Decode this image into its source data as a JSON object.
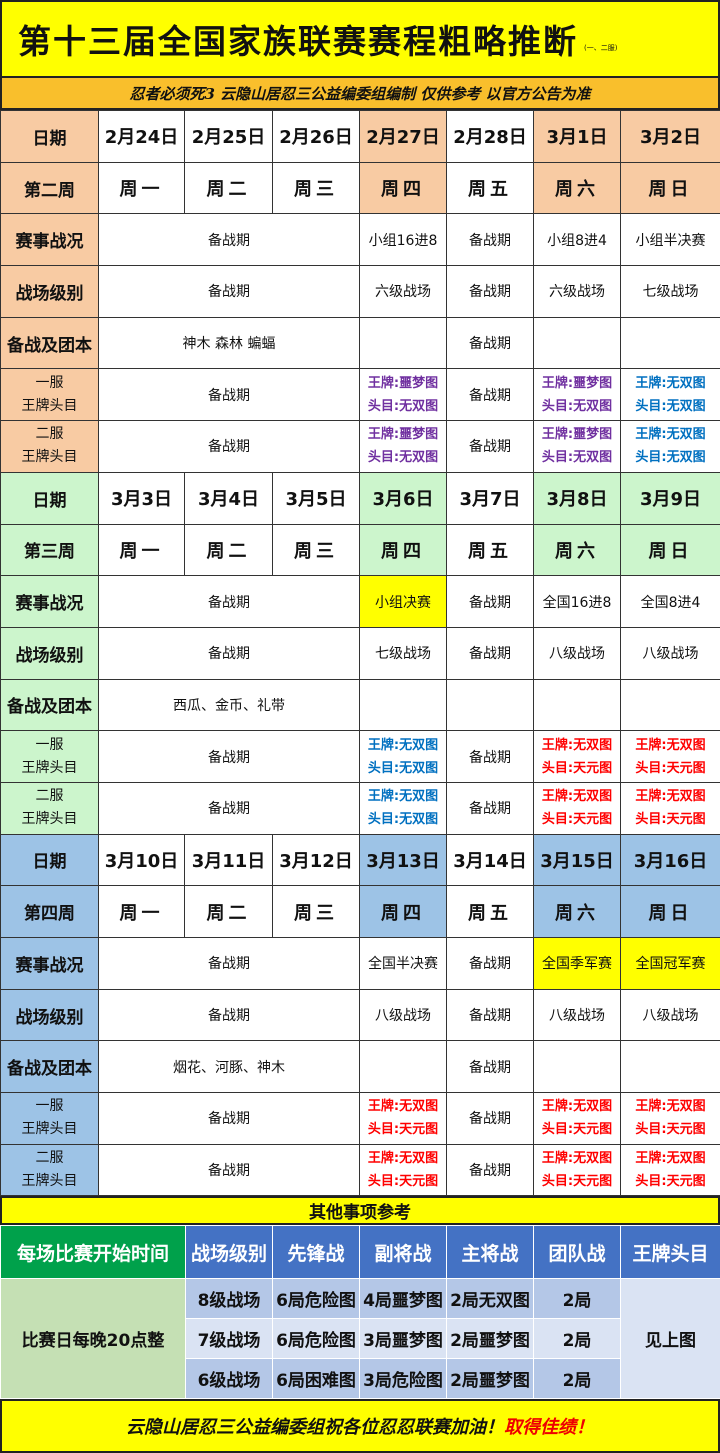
{
  "title": "第十三届全国家族联赛赛程粗略推断",
  "title_note": "(一、二服)",
  "subtitle": "忍者必须死3   云隐山居忍三公益编委组编制  仅供参考  以官方公告为准",
  "colors": {
    "yellow": "#ffff00",
    "purple": "#7030a0",
    "blue": "#0070c0",
    "red": "#ff0000"
  },
  "weeks": [
    {
      "color": "#f8cba3",
      "date_label": "日期",
      "week_label": "第二周",
      "dates": [
        "2月24日",
        "2月25日",
        "2月26日",
        "2月27日",
        "2月28日",
        "3月1日",
        "3月2日"
      ],
      "days": [
        "周一",
        "周二",
        "周三",
        "周四",
        "周五",
        "周六",
        "周日"
      ],
      "highlight": [
        false,
        false,
        false,
        true,
        false,
        true,
        true
      ],
      "rows": [
        {
          "label": "赛事战况",
          "cells": [
            {
              "text": "备战期",
              "span": 3
            },
            {
              "text": "小组16进8"
            },
            {
              "text": "备战期"
            },
            {
              "text": "小组8进4"
            },
            {
              "text": "小组半决赛"
            }
          ]
        },
        {
          "label": "战场级别",
          "cells": [
            {
              "text": "备战期",
              "span": 3
            },
            {
              "text": "六级战场"
            },
            {
              "text": "备战期"
            },
            {
              "text": "六级战场"
            },
            {
              "text": "七级战场"
            }
          ]
        },
        {
          "label": "备战及团本",
          "cells": [
            {
              "text": "神木 森林 蝙蝠",
              "span": 3
            },
            {
              "text": ""
            },
            {
              "text": "备战期"
            },
            {
              "text": ""
            },
            {
              "text": ""
            }
          ]
        },
        {
          "label": "一服",
          "label2": "王牌头目",
          "cells": [
            {
              "text": "备战期",
              "span": 3
            },
            {
              "lines": [
                "王牌:噩梦图",
                "头目:无双图"
              ],
              "color": "purple"
            },
            {
              "text": "备战期"
            },
            {
              "lines": [
                "王牌:噩梦图",
                "头目:无双图"
              ],
              "color": "purple"
            },
            {
              "lines": [
                "王牌:无双图",
                "头目:无双图"
              ],
              "color": "blue"
            }
          ]
        },
        {
          "label": "二服",
          "label2": "王牌头目",
          "cells": [
            {
              "text": "备战期",
              "span": 3
            },
            {
              "lines": [
                "王牌:噩梦图",
                "头目:无双图"
              ],
              "color": "purple"
            },
            {
              "text": "备战期"
            },
            {
              "lines": [
                "王牌:噩梦图",
                "头目:无双图"
              ],
              "color": "purple"
            },
            {
              "lines": [
                "王牌:无双图",
                "头目:无双图"
              ],
              "color": "blue"
            }
          ]
        }
      ]
    },
    {
      "color": "#ccf5cc",
      "date_label": "日期",
      "week_label": "第三周",
      "dates": [
        "3月3日",
        "3月4日",
        "3月5日",
        "3月6日",
        "3月7日",
        "3月8日",
        "3月9日"
      ],
      "days": [
        "周一",
        "周二",
        "周三",
        "周四",
        "周五",
        "周六",
        "周日"
      ],
      "highlight": [
        false,
        false,
        false,
        true,
        false,
        true,
        true
      ],
      "rows": [
        {
          "label": "赛事战况",
          "cells": [
            {
              "text": "备战期",
              "span": 3
            },
            {
              "text": "小组决赛",
              "bg": "yellow"
            },
            {
              "text": "备战期"
            },
            {
              "text": "全国16进8"
            },
            {
              "text": "全国8进4"
            }
          ]
        },
        {
          "label": "战场级别",
          "cells": [
            {
              "text": "备战期",
              "span": 3
            },
            {
              "text": "七级战场"
            },
            {
              "text": "备战期"
            },
            {
              "text": "八级战场"
            },
            {
              "text": "八级战场"
            }
          ]
        },
        {
          "label": "备战及团本",
          "cells": [
            {
              "text": "西瓜、金币、礼带",
              "span": 3
            },
            {
              "text": ""
            },
            {
              "text": ""
            },
            {
              "text": ""
            },
            {
              "text": ""
            }
          ]
        },
        {
          "label": "一服",
          "label2": "王牌头目",
          "cells": [
            {
              "text": "备战期",
              "span": 3
            },
            {
              "lines": [
                "王牌:无双图",
                "头目:无双图"
              ],
              "color": "blue"
            },
            {
              "text": "备战期"
            },
            {
              "lines": [
                "王牌:无双图",
                "头目:天元图"
              ],
              "color": "red"
            },
            {
              "lines": [
                "王牌:无双图",
                "头目:天元图"
              ],
              "color": "red"
            }
          ]
        },
        {
          "label": "二服",
          "label2": "王牌头目",
          "cells": [
            {
              "text": "备战期",
              "span": 3
            },
            {
              "lines": [
                "王牌:无双图",
                "头目:无双图"
              ],
              "color": "blue"
            },
            {
              "text": "备战期"
            },
            {
              "lines": [
                "王牌:无双图",
                "头目:天元图"
              ],
              "color": "red"
            },
            {
              "lines": [
                "王牌:无双图",
                "头目:天元图"
              ],
              "color": "red"
            }
          ]
        }
      ]
    },
    {
      "color": "#9dc3e6",
      "date_label": "日期",
      "week_label": "第四周",
      "dates": [
        "3月10日",
        "3月11日",
        "3月12日",
        "3月13日",
        "3月14日",
        "3月15日",
        "3月16日"
      ],
      "days": [
        "周一",
        "周二",
        "周三",
        "周四",
        "周五",
        "周六",
        "周日"
      ],
      "highlight": [
        false,
        false,
        false,
        true,
        false,
        true,
        true
      ],
      "rows": [
        {
          "label": "赛事战况",
          "cells": [
            {
              "text": "备战期",
              "span": 3
            },
            {
              "text": "全国半决赛"
            },
            {
              "text": "备战期"
            },
            {
              "text": "全国季军赛",
              "bg": "yellow"
            },
            {
              "text": "全国冠军赛",
              "bg": "yellow"
            }
          ]
        },
        {
          "label": "战场级别",
          "cells": [
            {
              "text": "备战期",
              "span": 3
            },
            {
              "text": "八级战场"
            },
            {
              "text": "备战期"
            },
            {
              "text": "八级战场"
            },
            {
              "text": "八级战场"
            }
          ]
        },
        {
          "label": "备战及团本",
          "cells": [
            {
              "text": "烟花、河豚、神木",
              "span": 3
            },
            {
              "text": ""
            },
            {
              "text": "备战期"
            },
            {
              "text": ""
            },
            {
              "text": ""
            }
          ]
        },
        {
          "label": "一服",
          "label2": "王牌头目",
          "cells": [
            {
              "text": "备战期",
              "span": 3
            },
            {
              "lines": [
                "王牌:无双图",
                "头目:天元图"
              ],
              "color": "red"
            },
            {
              "text": "备战期"
            },
            {
              "lines": [
                "王牌:无双图",
                "头目:天元图"
              ],
              "color": "red"
            },
            {
              "lines": [
                "王牌:无双图",
                "头目:天元图"
              ],
              "color": "red"
            }
          ]
        },
        {
          "label": "二服",
          "label2": "王牌头目",
          "cells": [
            {
              "text": "备战期",
              "span": 3
            },
            {
              "lines": [
                "王牌:无双图",
                "头目:天元图"
              ],
              "color": "red"
            },
            {
              "text": "备战期"
            },
            {
              "lines": [
                "王牌:无双图",
                "头目:天元图"
              ],
              "color": "red"
            },
            {
              "lines": [
                "王牌:无双图",
                "头目:天元图"
              ],
              "color": "red"
            }
          ]
        }
      ]
    }
  ],
  "other": {
    "title": "其他事项参考",
    "headers": [
      "每场比赛开始时间",
      "战场级别",
      "先锋战",
      "副将战",
      "主将战",
      "团队战",
      "王牌头目"
    ],
    "start_time": "比赛日每晚20点整",
    "rows": [
      [
        "8级战场",
        "6局危险图",
        "4局噩梦图",
        "2局无双图",
        "2局"
      ],
      [
        "7级战场",
        "6局危险图",
        "3局噩梦图",
        "2局噩梦图",
        "2局"
      ],
      [
        "6级战场",
        "6局困难图",
        "3局危险图",
        "2局噩梦图",
        "2局"
      ]
    ],
    "ace_boss": "见上图"
  },
  "footer": {
    "text": "云隐山居忍三公益编委组祝各位忍忍联赛加油！",
    "highlight": "取得佳绩！"
  }
}
